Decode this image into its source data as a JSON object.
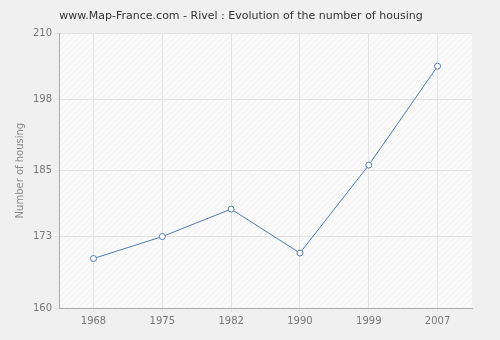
{
  "chart_data": {
    "type": "line",
    "title": "www.Map-France.com - Rivel : Evolution of the number of housing",
    "y_label": "Number of housing",
    "categories": [
      "1968",
      "1975",
      "1982",
      "1990",
      "1999",
      "2007"
    ],
    "values": [
      169,
      173,
      178,
      170,
      186,
      204
    ],
    "color": "#4f7db0",
    "marker": "circle",
    "ylim": [
      160,
      210
    ],
    "yticks": [
      160,
      173,
      185,
      198,
      210
    ],
    "grid": true
  }
}
